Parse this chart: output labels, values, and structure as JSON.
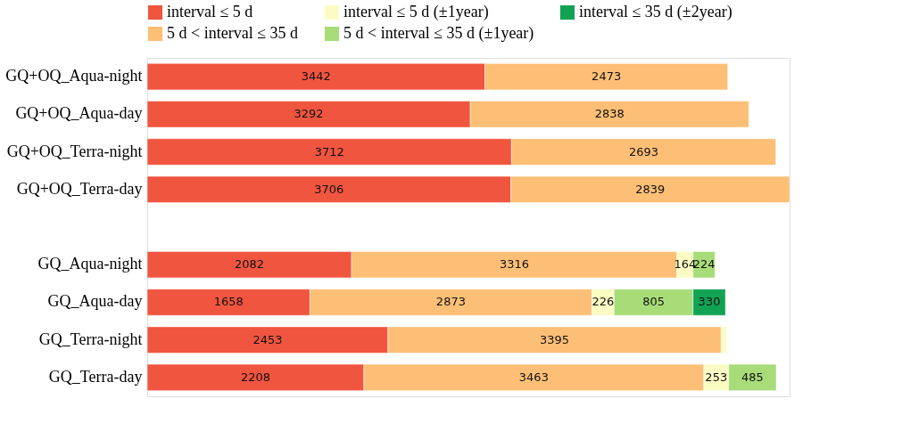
{
  "chart_data": {
    "type": "bar",
    "orientation": "horizontal",
    "stacked": true,
    "legend": "top",
    "grid": false,
    "tick_labels": "y",
    "categories": [
      "GQ+OQ_Aqua-night",
      "GQ+OQ_Aqua-day",
      "GQ+OQ_Terra-night",
      "GQ+OQ_Terra-day",
      null,
      "GQ_Aqua-night",
      "GQ_Aqua-day",
      "GQ_Terra-night",
      "GQ_Terra-day"
    ],
    "series": [
      {
        "name": "interval ≤ 5 d",
        "color": "#f0553f",
        "values": [
          3442,
          3292,
          3712,
          3706,
          null,
          2082,
          1658,
          2453,
          2208
        ],
        "value_labels": [
          "3442",
          "3292",
          "3712",
          "3706",
          null,
          "2082",
          "1658",
          "2453",
          "2208"
        ]
      },
      {
        "name": "5 d < interval ≤ 35 d",
        "color": "#fdbf76",
        "values": [
          2473,
          2838,
          2693,
          2839,
          null,
          3316,
          2873,
          3395,
          3463
        ],
        "value_labels": [
          "2473",
          "2838",
          "2693",
          "2839",
          null,
          "3316",
          "2873",
          "3395",
          "3463"
        ]
      },
      {
        "name": "interval ≤ 5 d (±1year)",
        "color": "#fafcc4",
        "values": [
          null,
          null,
          null,
          null,
          null,
          164,
          226,
          55,
          253
        ],
        "value_labels": [
          null,
          null,
          null,
          null,
          null,
          "164",
          "226",
          null,
          "253"
        ]
      },
      {
        "name": "5 d < interval ≤ 35 d (±1year)",
        "color": "#a8dc78",
        "values": [
          null,
          null,
          null,
          null,
          null,
          224,
          805,
          null,
          485
        ],
        "value_labels": [
          null,
          null,
          null,
          null,
          null,
          "224",
          "805",
          null,
          "485"
        ]
      },
      {
        "name": "interval ≤ 35 d (±2year)",
        "color": "#12a254",
        "values": [
          null,
          null,
          null,
          null,
          null,
          null,
          330,
          null,
          null
        ],
        "value_labels": [
          null,
          null,
          null,
          null,
          null,
          null,
          "330",
          null,
          null
        ]
      }
    ]
  }
}
